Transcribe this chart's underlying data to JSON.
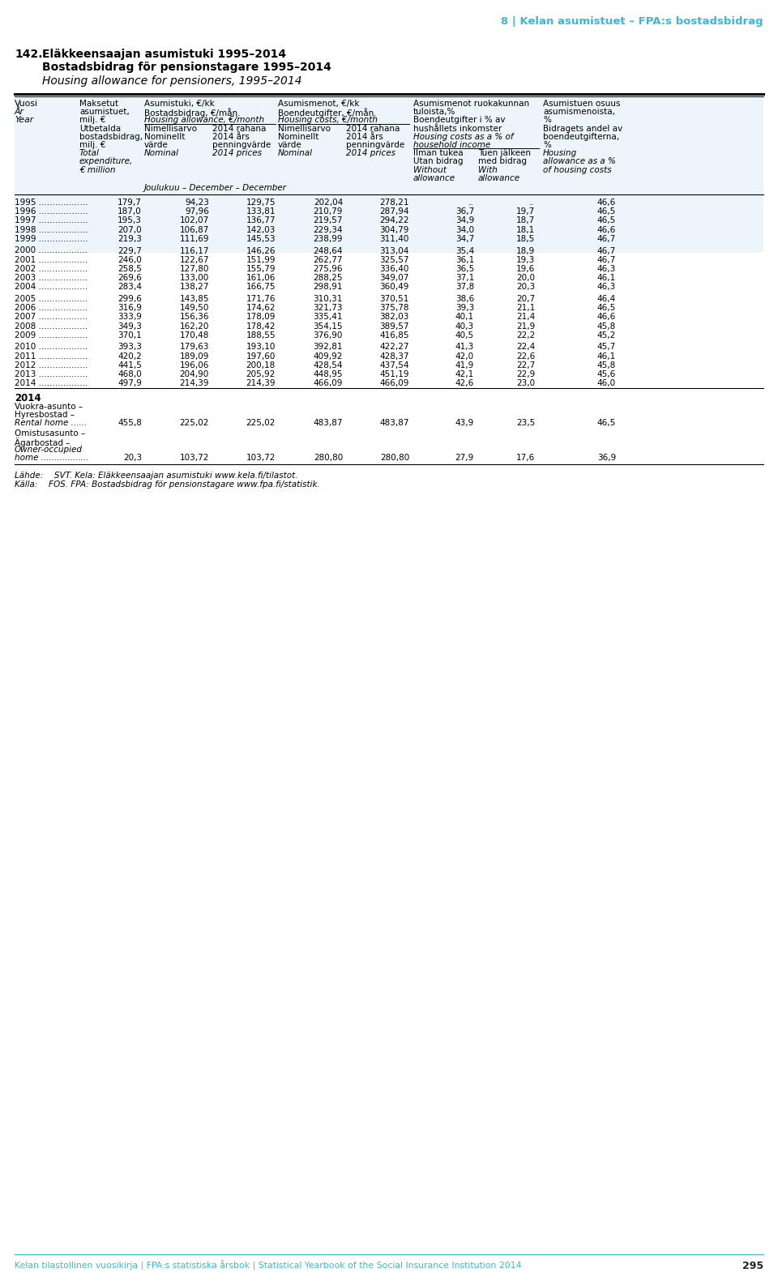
{
  "page_header": "8 | Kelan asumistuet – FPA:s bostadsbidrag",
  "title_num": "142.",
  "title_line1": "Eläkkeensaajan asumistuki 1995–2014",
  "title_line2": "Bostadsbidrag för pensionstagare 1995–2014",
  "title_line3": "Housing allowance for pensioners, 1995–2014",
  "footer_text": "Kelan tilastollinen vuosikirja | FPA:s statistiska årsbok | Statistical Yearbook of the Social Insurance Institution 2014",
  "footer_page": "295",
  "source_line1": "Lähde:  SVT. Kela: Eläkkeensaajan asumistuki www.kela.fi/tilastot.",
  "source_line2": "Källa:  FOS. FPA: Bostadsbidrag för pensionstagare www.fpa.fi/statistik.",
  "december_label": "Joulukuu – December – December",
  "rows": [
    {
      "year": "1995",
      "col1": "179,7",
      "col2a": "94,23",
      "col2b": "129,75",
      "col3a": "202,04",
      "col3b": "278,21",
      "col4a": "..",
      "col4b": "..",
      "col5": "46,6"
    },
    {
      "year": "1996",
      "col1": "187,0",
      "col2a": "97,96",
      "col2b": "133,81",
      "col3a": "210,79",
      "col3b": "287,94",
      "col4a": "36,7",
      "col4b": "19,7",
      "col5": "46,5"
    },
    {
      "year": "1997",
      "col1": "195,3",
      "col2a": "102,07",
      "col2b": "136,77",
      "col3a": "219,57",
      "col3b": "294,22",
      "col4a": "34,9",
      "col4b": "18,7",
      "col5": "46,5"
    },
    {
      "year": "1998",
      "col1": "207,0",
      "col2a": "106,87",
      "col2b": "142,03",
      "col3a": "229,34",
      "col3b": "304,79",
      "col4a": "34,0",
      "col4b": "18,1",
      "col5": "46,6"
    },
    {
      "year": "1999",
      "col1": "219,3",
      "col2a": "111,69",
      "col2b": "145,53",
      "col3a": "238,99",
      "col3b": "311,40",
      "col4a": "34,7",
      "col4b": "18,5",
      "col5": "46,7"
    },
    {
      "year": "2000",
      "col1": "229,7",
      "col2a": "116,17",
      "col2b": "146,26",
      "col3a": "248,64",
      "col3b": "313,04",
      "col4a": "35,4",
      "col4b": "18,9",
      "col5": "46,7"
    },
    {
      "year": "2001",
      "col1": "246,0",
      "col2a": "122,67",
      "col2b": "151,99",
      "col3a": "262,77",
      "col3b": "325,57",
      "col4a": "36,1",
      "col4b": "19,3",
      "col5": "46,7"
    },
    {
      "year": "2002",
      "col1": "258,5",
      "col2a": "127,80",
      "col2b": "155,79",
      "col3a": "275,96",
      "col3b": "336,40",
      "col4a": "36,5",
      "col4b": "19,6",
      "col5": "46,3"
    },
    {
      "year": "2003",
      "col1": "269,6",
      "col2a": "133,00",
      "col2b": "161,06",
      "col3a": "288,25",
      "col3b": "349,07",
      "col4a": "37,1",
      "col4b": "20,0",
      "col5": "46,1"
    },
    {
      "year": "2004",
      "col1": "283,4",
      "col2a": "138,27",
      "col2b": "166,75",
      "col3a": "298,91",
      "col3b": "360,49",
      "col4a": "37,8",
      "col4b": "20,3",
      "col5": "46,3"
    },
    {
      "year": "2005",
      "col1": "299,6",
      "col2a": "143,85",
      "col2b": "171,76",
      "col3a": "310,31",
      "col3b": "370,51",
      "col4a": "38,6",
      "col4b": "20,7",
      "col5": "46,4"
    },
    {
      "year": "2006",
      "col1": "316,9",
      "col2a": "149,50",
      "col2b": "174,62",
      "col3a": "321,73",
      "col3b": "375,78",
      "col4a": "39,3",
      "col4b": "21,1",
      "col5": "46,5"
    },
    {
      "year": "2007",
      "col1": "333,9",
      "col2a": "156,36",
      "col2b": "178,09",
      "col3a": "335,41",
      "col3b": "382,03",
      "col4a": "40,1",
      "col4b": "21,4",
      "col5": "46,6"
    },
    {
      "year": "2008",
      "col1": "349,3",
      "col2a": "162,20",
      "col2b": "178,42",
      "col3a": "354,15",
      "col3b": "389,57",
      "col4a": "40,3",
      "col4b": "21,9",
      "col5": "45,8"
    },
    {
      "year": "2009",
      "col1": "370,1",
      "col2a": "170,48",
      "col2b": "188,55",
      "col3a": "376,90",
      "col3b": "416,85",
      "col4a": "40,5",
      "col4b": "22,2",
      "col5": "45,2"
    },
    {
      "year": "2010",
      "col1": "393,3",
      "col2a": "179,63",
      "col2b": "193,10",
      "col3a": "392,81",
      "col3b": "422,27",
      "col4a": "41,3",
      "col4b": "22,4",
      "col5": "45,7"
    },
    {
      "year": "2011",
      "col1": "420,2",
      "col2a": "189,09",
      "col2b": "197,60",
      "col3a": "409,92",
      "col3b": "428,37",
      "col4a": "42,0",
      "col4b": "22,6",
      "col5": "46,1"
    },
    {
      "year": "2012",
      "col1": "441,5",
      "col2a": "196,06",
      "col2b": "200,18",
      "col3a": "428,54",
      "col3b": "437,54",
      "col4a": "41,9",
      "col4b": "22,7",
      "col5": "45,8"
    },
    {
      "year": "2013",
      "col1": "468,0",
      "col2a": "204,90",
      "col2b": "205,92",
      "col3a": "448,95",
      "col3b": "451,19",
      "col4a": "42,1",
      "col4b": "22,9",
      "col5": "45,6"
    },
    {
      "year": "2014",
      "col1": "497,9",
      "col2a": "214,39",
      "col2b": "214,39",
      "col3a": "466,09",
      "col3b": "466,09",
      "col4a": "42,6",
      "col4b": "23,0",
      "col5": "46,0"
    }
  ],
  "rental_home_data": {
    "col1": "455,8",
    "col2a": "225,02",
    "col2b": "225,02",
    "col3a": "483,87",
    "col3b": "483,87",
    "col4a": "43,9",
    "col4b": "23,5",
    "col5": "46,5"
  },
  "owner_occupied_data": {
    "col1": "20,3",
    "col2a": "103,72",
    "col2b": "103,72",
    "col3a": "280,80",
    "col3b": "280,80",
    "col4a": "27,9",
    "col4b": "17,6",
    "col5": "36,9"
  },
  "bg_color": "#FFFFFF",
  "header_bg": "#EBF5FA",
  "light_blue": "#3BB8D8",
  "text_color": "#000000"
}
